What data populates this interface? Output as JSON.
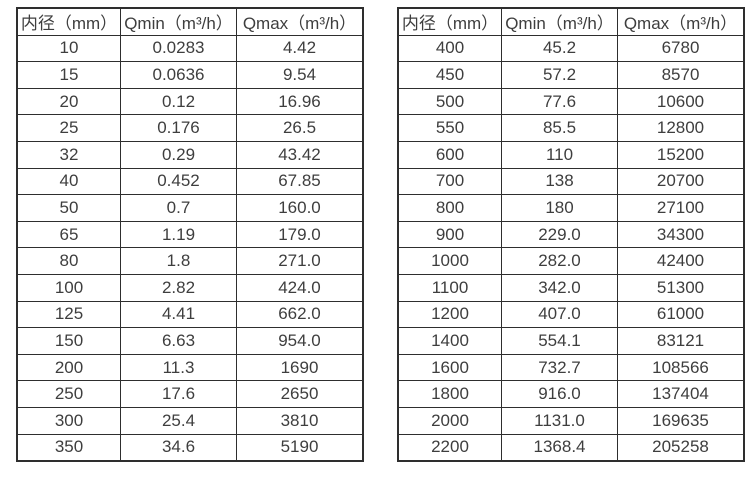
{
  "colors": {
    "background": "#ffffff",
    "border": "#2e2e2e",
    "text": "#3e3e3e"
  },
  "tables": [
    {
      "name": "flow-table-small-diameters",
      "headers": [
        "内径（mm）",
        "Qmin（m³/h）",
        "Qmax（m³/h）"
      ],
      "rows": [
        [
          "10",
          "0.0283",
          "4.42"
        ],
        [
          "15",
          "0.0636",
          "9.54"
        ],
        [
          "20",
          "0.12",
          "16.96"
        ],
        [
          "25",
          "0.176",
          "26.5"
        ],
        [
          "32",
          "0.29",
          "43.42"
        ],
        [
          "40",
          "0.452",
          "67.85"
        ],
        [
          "50",
          "0.7",
          "160.0"
        ],
        [
          "65",
          "1.19",
          "179.0"
        ],
        [
          "80",
          "1.8",
          "271.0"
        ],
        [
          "100",
          "2.82",
          "424.0"
        ],
        [
          "125",
          "4.41",
          "662.0"
        ],
        [
          "150",
          "6.63",
          "954.0"
        ],
        [
          "200",
          "11.3",
          "1690"
        ],
        [
          "250",
          "17.6",
          "2650"
        ],
        [
          "300",
          "25.4",
          "3810"
        ],
        [
          "350",
          "34.6",
          "5190"
        ]
      ]
    },
    {
      "name": "flow-table-large-diameters",
      "headers": [
        "内径（mm）",
        "Qmin（m³/h）",
        "Qmax（m³/h）"
      ],
      "rows": [
        [
          "400",
          "45.2",
          "6780"
        ],
        [
          "450",
          "57.2",
          "8570"
        ],
        [
          "500",
          "77.6",
          "10600"
        ],
        [
          "550",
          "85.5",
          "12800"
        ],
        [
          "600",
          "110",
          "15200"
        ],
        [
          "700",
          "138",
          "20700"
        ],
        [
          "800",
          "180",
          "27100"
        ],
        [
          "900",
          "229.0",
          "34300"
        ],
        [
          "1000",
          "282.0",
          "42400"
        ],
        [
          "1100",
          "342.0",
          "51300"
        ],
        [
          "1200",
          "407.0",
          "61000"
        ],
        [
          "1400",
          "554.1",
          "83121"
        ],
        [
          "1600",
          "732.7",
          "108566"
        ],
        [
          "1800",
          "916.0",
          "137404"
        ],
        [
          "2000",
          "1131.0",
          "169635"
        ],
        [
          "2200",
          "1368.4",
          "205258"
        ]
      ]
    }
  ]
}
